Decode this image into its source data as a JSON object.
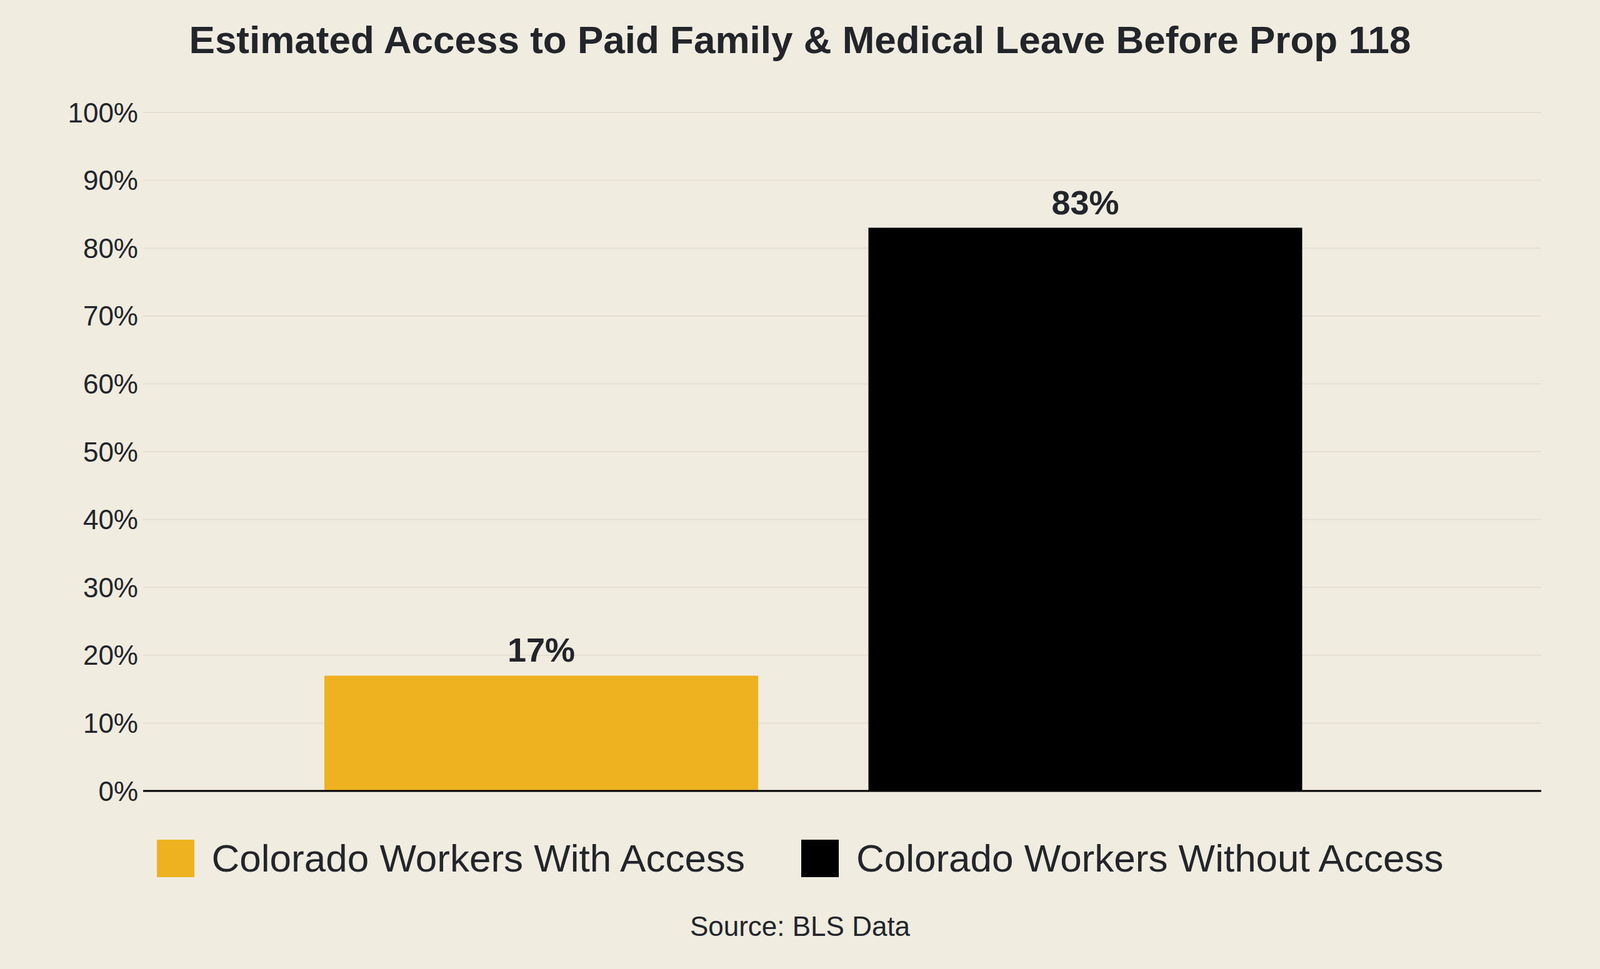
{
  "chart_data": {
    "type": "bar",
    "title": "Estimated Access to Paid Family & Medical Leave Before Prop 118",
    "categories": [
      "Colorado Workers With Access",
      "Colorado Workers Without Access"
    ],
    "values": [
      17,
      83
    ],
    "value_labels": [
      "17%",
      "83%"
    ],
    "colors": [
      "#eeb220",
      "#000000"
    ],
    "ylim": [
      0,
      100
    ],
    "yticks": [
      {
        "value": 0,
        "label": "0%"
      },
      {
        "value": 10,
        "label": "10%"
      },
      {
        "value": 20,
        "label": "20%"
      },
      {
        "value": 30,
        "label": "30%"
      },
      {
        "value": 40,
        "label": "40%"
      },
      {
        "value": 50,
        "label": "50%"
      },
      {
        "value": 60,
        "label": "60%"
      },
      {
        "value": 70,
        "label": "70%"
      },
      {
        "value": 80,
        "label": "80%"
      },
      {
        "value": 90,
        "label": "90%"
      },
      {
        "value": 100,
        "label": "100%"
      }
    ],
    "grid": true,
    "data_labels": true,
    "tick_labels": "y",
    "legend": "bottom",
    "source": "Source: BLS Data"
  }
}
